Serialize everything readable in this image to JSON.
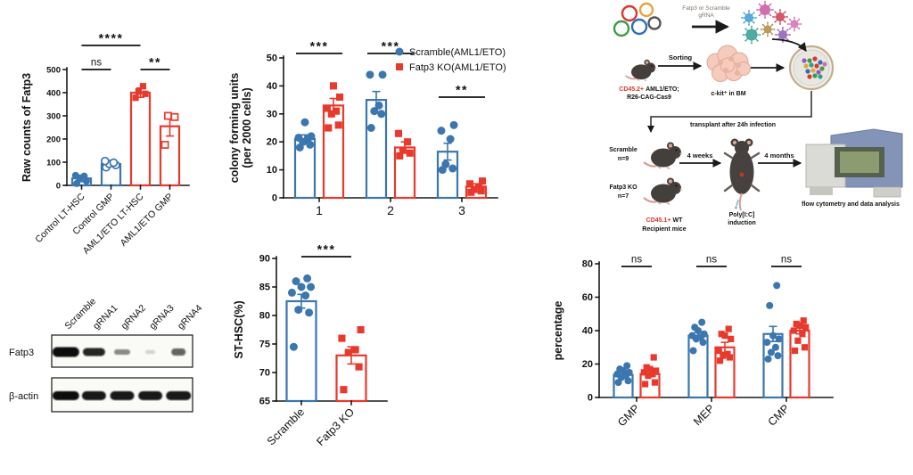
{
  "colors": {
    "blue": "#3B76AF",
    "red": "#E8392D",
    "black": "#1a1a1a"
  },
  "chart_data": [
    {
      "id": "raw_counts",
      "type": "bar",
      "title": "",
      "ylabel": "Raw counts of Fatp3",
      "ylim": [
        0,
        500
      ],
      "yticks": [
        0,
        100,
        200,
        300,
        400,
        500
      ],
      "categories": [
        "Control LT-HSC",
        "Control GMP",
        "AML1/ETO LT-HSC",
        "AML1/ETO GMP"
      ],
      "bars": [
        {
          "category": "Control LT-HSC",
          "value": 30,
          "error": 14,
          "color": "blue",
          "marker": "circle",
          "fill": "solid",
          "points": [
            8,
            18,
            28,
            40,
            43
          ]
        },
        {
          "category": "Control GMP",
          "value": 92,
          "error": 8,
          "color": "blue",
          "marker": "circle",
          "fill": "open",
          "points": [
            78,
            88,
            93,
            98,
            105
          ]
        },
        {
          "category": "AML1/ETO LT-HSC",
          "value": 400,
          "error": 20,
          "color": "red",
          "marker": "square",
          "fill": "solid",
          "points": [
            378,
            395,
            405,
            428
          ]
        },
        {
          "category": "AML1/ETO GMP",
          "value": 255,
          "error": 42,
          "color": "red",
          "marker": "square",
          "fill": "open",
          "points": [
            175,
            295,
            300
          ]
        }
      ],
      "significance": [
        {
          "from": 0,
          "to": 1,
          "label": "ns"
        },
        {
          "from": 0,
          "to": 2,
          "label": "****"
        },
        {
          "from": 2,
          "to": 3,
          "label": "**"
        }
      ]
    },
    {
      "id": "cfu",
      "type": "grouped-bar",
      "ylabel": "colony forming units\n(per 2000 cells)",
      "ylim": [
        0,
        50
      ],
      "yticks": [
        0,
        10,
        20,
        30,
        40,
        50
      ],
      "categories": [
        "1",
        "2",
        "3"
      ],
      "legend_position": "top-right",
      "series": [
        {
          "name": "Scramble(AML1/ETO)",
          "color": "blue",
          "marker": "circle",
          "values": [
            21,
            35,
            16.5
          ],
          "errors": [
            1.5,
            3,
            3
          ],
          "points": [
            [
              18,
              19,
              20,
              21,
              21.5,
              22,
              27
            ],
            [
              25,
              30,
              31,
              33,
              44,
              44
            ],
            [
              10,
              10.5,
              12,
              21,
              24,
              26
            ]
          ]
        },
        {
          "name": "Fatp3 KO(AML1/ETO)",
          "color": "red",
          "marker": "square",
          "values": [
            33,
            18,
            4
          ],
          "errors": [
            2.5,
            2,
            1
          ],
          "points": [
            [
              25,
              26,
              30,
              31,
              32,
              36,
              40
            ],
            [
              15,
              16,
              17,
              20,
              23
            ],
            [
              2,
              2.5,
              3,
              4,
              5,
              6
            ]
          ]
        }
      ],
      "significance": [
        {
          "group": 0,
          "label": "***"
        },
        {
          "group": 1,
          "label": "***"
        },
        {
          "group": 2,
          "label": "**"
        }
      ]
    },
    {
      "id": "st_hsc",
      "type": "bar",
      "ylabel": "ST-HSC(%)",
      "ylim": [
        65,
        90
      ],
      "yticks": [
        65,
        70,
        75,
        80,
        85,
        90
      ],
      "categories": [
        "Scramble",
        "Fatp3 KO"
      ],
      "bars": [
        {
          "category": "Scramble",
          "value": 82.5,
          "error": 1.2,
          "color": "blue",
          "marker": "circle",
          "fill": "solid",
          "points": [
            74.5,
            80.5,
            81,
            83.5,
            84,
            85,
            85,
            86,
            86.5
          ]
        },
        {
          "category": "Fatp3 KO",
          "value": 73,
          "error": 1.5,
          "color": "red",
          "marker": "square",
          "fill": "solid",
          "points": [
            67,
            71,
            73.5,
            74,
            76,
            77.5
          ]
        }
      ],
      "significance": [
        {
          "from": 0,
          "to": 1,
          "label": "***"
        }
      ]
    },
    {
      "id": "percentage",
      "type": "grouped-bar",
      "ylabel": "percentage",
      "ylim": [
        0,
        80
      ],
      "yticks": [
        0,
        20,
        40,
        60,
        80
      ],
      "categories": [
        "GMP",
        "MEP",
        "CMP"
      ],
      "series": [
        {
          "name": "Scramble",
          "color": "blue",
          "marker": "circle",
          "values": [
            13.5,
            37,
            38
          ],
          "errors": [
            1.5,
            2,
            4.5
          ],
          "points": [
            [
              9,
              10,
              12,
              13,
              14,
              15,
              16,
              17,
              19
            ],
            [
              28,
              33,
              35,
              36,
              37,
              38,
              40,
              42,
              45
            ],
            [
              23,
              25,
              27,
              30,
              33,
              35,
              37,
              55,
              67
            ]
          ]
        },
        {
          "name": "Fatp3 KO",
          "color": "red",
          "marker": "square",
          "values": [
            14,
            30,
            40
          ],
          "errors": [
            1.5,
            3,
            2
          ],
          "points": [
            [
              8,
              9,
              13,
              14,
              15,
              16,
              17,
              18,
              24
            ],
            [
              22,
              24,
              25,
              26,
              28,
              35,
              37,
              38,
              41
            ],
            [
              28,
              30,
              34,
              38,
              40,
              42,
              43,
              44,
              46
            ]
          ]
        }
      ],
      "significance": [
        {
          "group": 0,
          "label": "ns"
        },
        {
          "group": 1,
          "label": "ns"
        },
        {
          "group": 2,
          "label": "ns"
        }
      ]
    }
  ],
  "western_blot": {
    "lanes": [
      "Scramble",
      "gRNA1",
      "gRNA2",
      "gRNA3",
      "gRNA4"
    ],
    "rows": [
      {
        "label": "Fatp3",
        "band_intensities": [
          1,
          0.9,
          0.45,
          0.15,
          0.65
        ]
      },
      {
        "label": "β-actin",
        "band_intensities": [
          1,
          0.95,
          0.95,
          0.95,
          0.95
        ]
      }
    ]
  },
  "diagram": {
    "plasmid_label": "Fatp3 or Scramble",
    "plasmid_label2": "gRNA",
    "sorting_label": "Sorting",
    "donor_label_red": "CD45.2+",
    "donor_label_black": "AML1/ETO;",
    "donor_label_line2": "R26-CAG-Cas9",
    "ckit_label": "c-kit⁺ in BM",
    "transplant_label": "transplant after 24h infection",
    "group1_label": "Scramble",
    "group1_n": "n=9",
    "group2_label": "Fatp3 KO",
    "group2_n": "n=7",
    "recipient_label_red": "CD45.1+",
    "recipient_label_black": "WT",
    "recipient_label_line2": "Recipient mice",
    "weeks_label": "4 weeks",
    "poly_label": "Poly[I:C]",
    "induction_label": "induction",
    "months_label": "4 months",
    "flow_label": "flow cytometry and data analysis"
  }
}
